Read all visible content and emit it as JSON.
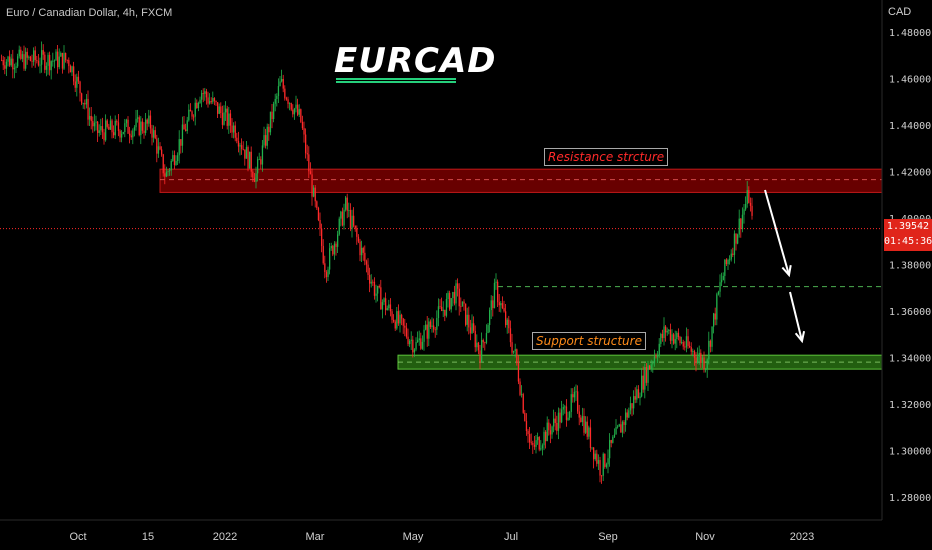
{
  "header": {
    "symbol_line": "Euro / Canadian Dollar, 4h, FXCM"
  },
  "annotation": {
    "title": "EURCAD",
    "title_underline_color": "#26d07c",
    "resistance_label": "Resistance strcture",
    "support_label": "Support structure"
  },
  "price_axis": {
    "currency": "CAD",
    "ticks": [
      "1.48000",
      "1.46000",
      "1.44000",
      "1.42000",
      "1.40000",
      "1.38000",
      "1.36000",
      "1.34000",
      "1.32000",
      "1.30000",
      "1.28000"
    ],
    "current_price": "1.39542",
    "countdown": "01:45:36",
    "current_price_color": "#e0251b"
  },
  "time_axis": {
    "ticks": [
      "Oct",
      "15",
      "2022",
      "Mar",
      "May",
      "Jul",
      "Sep",
      "Nov",
      "2023"
    ]
  },
  "colors": {
    "up": "#22b14c",
    "down": "#ff2a2a",
    "background": "#000000",
    "resistance_zone": "#8b0000",
    "support_zone": "#2e7d16",
    "arrow": "#ffffff"
  },
  "chart_data": {
    "type": "candlestick",
    "instrument": "EURCAD",
    "timeframe": "4h",
    "ylim": [
      1.275,
      1.49
    ],
    "last_price": 1.39542,
    "zones": [
      {
        "name": "Resistance strcture",
        "low": 1.411,
        "high": 1.421
      },
      {
        "name": "Support structure",
        "low": 1.335,
        "high": 1.341
      }
    ],
    "price_path": [
      {
        "x": "Sep 2021",
        "y": 1.468
      },
      {
        "x": "Oct 2021",
        "y": 1.468
      },
      {
        "x": "Oct 2021",
        "y": 1.437
      },
      {
        "x": "Oct 15 2021",
        "y": 1.44
      },
      {
        "x": "Oct 2021",
        "y": 1.418
      },
      {
        "x": "Nov 2021",
        "y": 1.455
      },
      {
        "x": "Dec 2021",
        "y": 1.438
      },
      {
        "x": "Jan 2022",
        "y": 1.418
      },
      {
        "x": "Feb 2022",
        "y": 1.458
      },
      {
        "x": "Feb 2022",
        "y": 1.442
      },
      {
        "x": "Mar 2022",
        "y": 1.378
      },
      {
        "x": "Mar 2022",
        "y": 1.405
      },
      {
        "x": "Apr 2022",
        "y": 1.368
      },
      {
        "x": "May 2022",
        "y": 1.345
      },
      {
        "x": "May 2022",
        "y": 1.368
      },
      {
        "x": "Jun 2022",
        "y": 1.342
      },
      {
        "x": "Jun 2022",
        "y": 1.37
      },
      {
        "x": "Jul 2022",
        "y": 1.34
      },
      {
        "x": "Jul 2022",
        "y": 1.3
      },
      {
        "x": "Aug 2022",
        "y": 1.322
      },
      {
        "x": "Aug 2022",
        "y": 1.292
      },
      {
        "x": "Sep 2022",
        "y": 1.328
      },
      {
        "x": "Oct 2022",
        "y": 1.352
      },
      {
        "x": "Oct 2022",
        "y": 1.338
      },
      {
        "x": "Nov 2022",
        "y": 1.372
      },
      {
        "x": "Nov 2022",
        "y": 1.41
      },
      {
        "x": "Nov 2022",
        "y": 1.3954
      }
    ]
  }
}
